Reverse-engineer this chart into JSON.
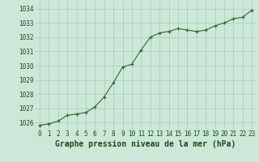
{
  "x": [
    0,
    1,
    2,
    3,
    4,
    5,
    6,
    7,
    8,
    9,
    10,
    11,
    12,
    13,
    14,
    15,
    16,
    17,
    18,
    19,
    20,
    21,
    22,
    23
  ],
  "y": [
    1025.8,
    1025.9,
    1026.1,
    1026.5,
    1026.6,
    1026.7,
    1027.1,
    1027.8,
    1028.8,
    1029.9,
    1030.1,
    1031.1,
    1032.0,
    1032.3,
    1032.4,
    1032.6,
    1032.5,
    1032.4,
    1032.5,
    1032.8,
    1033.0,
    1033.3,
    1033.4,
    1033.9
  ],
  "line_color": "#2d6a2d",
  "marker": "+",
  "marker_color": "#2d6a2d",
  "bg_color": "#cce8d8",
  "grid_color": "#aac8b8",
  "xlabel": "Graphe pression niveau de la mer (hPa)",
  "xlabel_fontsize": 7,
  "ylim": [
    1025.5,
    1034.5
  ],
  "yticks": [
    1026,
    1027,
    1028,
    1029,
    1030,
    1031,
    1032,
    1033,
    1034
  ],
  "xticks": [
    0,
    1,
    2,
    3,
    4,
    5,
    6,
    7,
    8,
    9,
    10,
    11,
    12,
    13,
    14,
    15,
    16,
    17,
    18,
    19,
    20,
    21,
    22,
    23
  ],
  "tick_fontsize": 5.5,
  "label_color": "#1a4a1a"
}
